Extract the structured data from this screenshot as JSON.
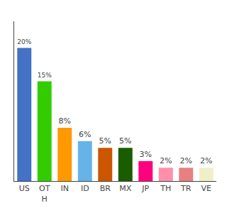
{
  "chart_data": {
    "type": "bar",
    "categories": [
      "US",
      "OT\nH",
      "IN",
      "ID",
      "BR",
      "MX",
      "JP",
      "TH",
      "TR",
      "VE"
    ],
    "values": [
      20,
      15,
      8,
      6,
      5,
      5,
      3,
      2,
      2,
      2
    ],
    "value_labels": [
      "20%",
      "15%",
      "8%",
      "6%",
      "5%",
      "5%",
      "3%",
      "2%",
      "2%",
      "2%"
    ],
    "colors": [
      "#4472c4",
      "#33cc00",
      "#ff9900",
      "#66b3e8",
      "#cc5500",
      "#1a5c00",
      "#ff007f",
      "#ff8fab",
      "#e88080",
      "#f0f0c8"
    ],
    "ylim": [
      0,
      24
    ],
    "data_labels": true,
    "grid": false,
    "tick_labels": "x"
  }
}
